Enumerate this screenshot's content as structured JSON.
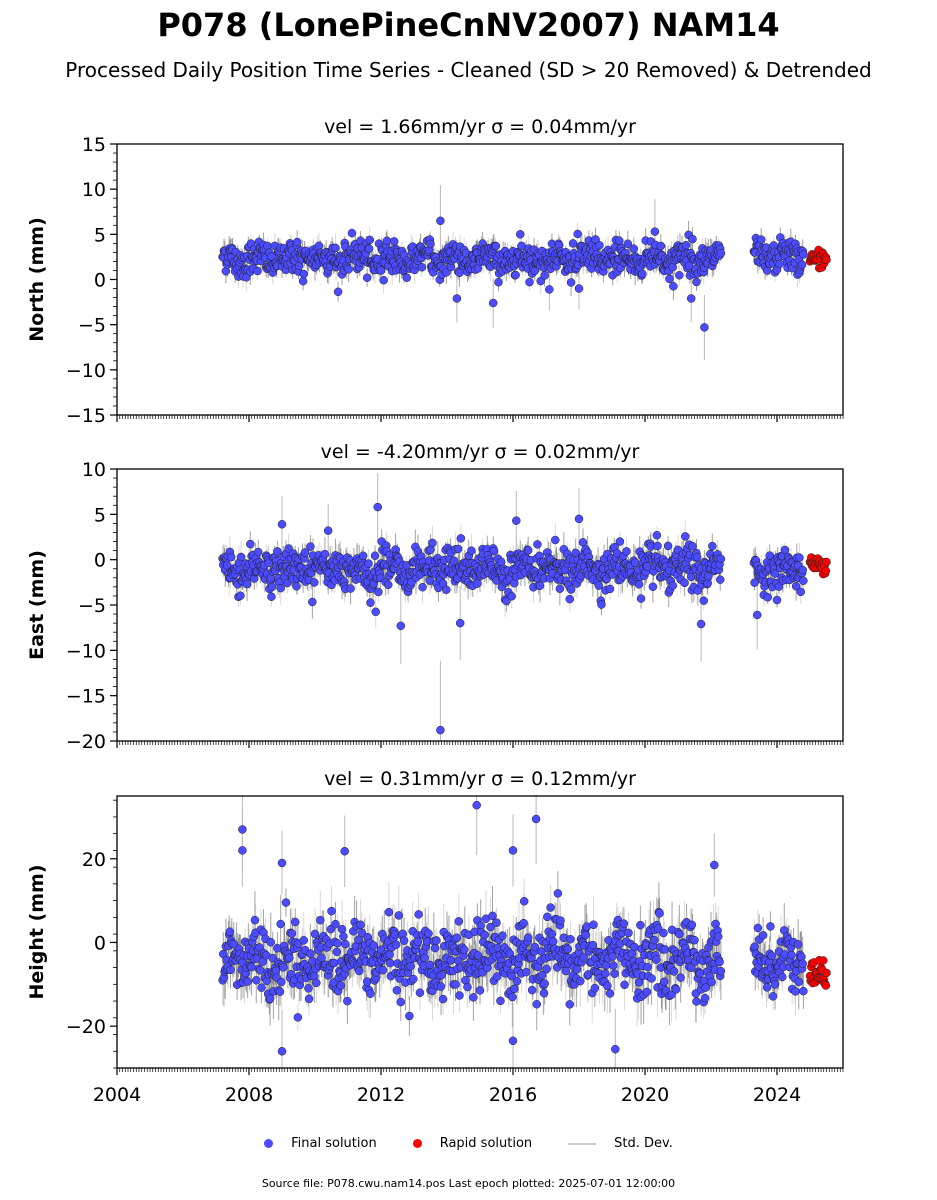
{
  "title": "P078 (LonePineCnNV2007) NAM14",
  "subtitle": "Processed Daily Position Time Series - Cleaned (SD > 20 Removed) & Detrended",
  "legend": {
    "final": "Final solution",
    "rapid": "Rapid solution",
    "sd": "Std. Dev."
  },
  "footer": "Source file: P078.cwu.nam14.pos  Last epoch plotted: 2025-07-01 12:00:00",
  "colors": {
    "final": "#4b4bff",
    "rapid": "#ff0000",
    "sd": "#b8b8b8"
  },
  "chart_data": [
    {
      "type": "scatter",
      "title": "vel = 1.66mm/yr   σ = 0.04mm/yr",
      "ylabel": "North (mm)",
      "xlim": [
        2004,
        2026
      ],
      "ylim": [
        -15,
        15
      ],
      "yticks": [
        -15,
        -10,
        -5,
        0,
        5,
        10,
        15
      ],
      "xticks": [
        2004,
        2008,
        2012,
        2016,
        2020,
        2024
      ],
      "show_xtick_labels": false,
      "segments": [
        {
          "x": [
            2007.2,
            2022.3
          ],
          "mean": 2.3,
          "spread": 1.3
        },
        {
          "x": [
            2023.3,
            2024.8
          ],
          "mean": 2.5,
          "spread": 1.2
        }
      ],
      "outliers": [
        [
          2013.8,
          6.5
        ],
        [
          2014.3,
          -2.1
        ],
        [
          2015.4,
          -2.6
        ],
        [
          2017.1,
          -1.1
        ],
        [
          2018.0,
          -1.0
        ],
        [
          2020.3,
          5.3
        ],
        [
          2021.4,
          -2.1
        ],
        [
          2021.8,
          -5.3
        ]
      ],
      "rapid": {
        "x": [
          2025.0,
          2025.5
        ],
        "mean": 2.3,
        "spread": 0.8
      }
    },
    {
      "type": "scatter",
      "title": "vel = -4.20mm/yr   σ = 0.02mm/yr",
      "ylabel": "East (mm)",
      "xlim": [
        2004,
        2026
      ],
      "ylim": [
        -20,
        10
      ],
      "yticks": [
        -20,
        -15,
        -10,
        -5,
        0,
        5,
        10
      ],
      "xticks": [
        2004,
        2008,
        2012,
        2016,
        2020,
        2024
      ],
      "show_xtick_labels": false,
      "segments": [
        {
          "x": [
            2007.2,
            2022.3
          ],
          "mean": -1.0,
          "spread": 1.6
        },
        {
          "x": [
            2023.3,
            2024.8
          ],
          "mean": -1.2,
          "spread": 1.4
        }
      ],
      "outliers": [
        [
          2011.9,
          5.8
        ],
        [
          2012.6,
          -7.3
        ],
        [
          2013.8,
          -18.8
        ],
        [
          2014.4,
          -7.0
        ],
        [
          2016.1,
          4.3
        ],
        [
          2018.0,
          4.5
        ],
        [
          2021.7,
          -7.1
        ],
        [
          2023.4,
          -6.1
        ],
        [
          2009.0,
          3.9
        ],
        [
          2010.4,
          3.2
        ]
      ],
      "rapid": {
        "x": [
          2025.0,
          2025.5
        ],
        "mean": -0.5,
        "spread": 0.7
      }
    },
    {
      "type": "scatter",
      "title": "vel = 0.31mm/yr   σ = 0.12mm/yr",
      "ylabel": "Height (mm)",
      "xlim": [
        2004,
        2026
      ],
      "ylim": [
        -30,
        35
      ],
      "yticks": [
        -20,
        0,
        20
      ],
      "xticks": [
        2004,
        2008,
        2012,
        2016,
        2020,
        2024
      ],
      "xtick_labels": [
        "2004",
        "2008",
        "2012",
        "2016",
        "2020",
        "2024"
      ],
      "show_xtick_labels": true,
      "segments": [
        {
          "x": [
            2007.2,
            2022.3
          ],
          "mean": -4.0,
          "spread": 6.0
        },
        {
          "x": [
            2023.3,
            2024.8
          ],
          "mean": -4.0,
          "spread": 5.5
        }
      ],
      "outliers": [
        [
          2007.8,
          27.0
        ],
        [
          2007.8,
          22.0
        ],
        [
          2009.0,
          19.0
        ],
        [
          2010.9,
          21.8
        ],
        [
          2014.9,
          32.8
        ],
        [
          2016.0,
          22.0
        ],
        [
          2016.7,
          29.5
        ],
        [
          2009.0,
          -26.0
        ],
        [
          2019.1,
          -25.5
        ],
        [
          2016.0,
          -23.5
        ],
        [
          2022.1,
          18.5
        ]
      ],
      "rapid": {
        "x": [
          2025.0,
          2025.5
        ],
        "mean": -7.5,
        "spread": 3.2
      }
    }
  ]
}
